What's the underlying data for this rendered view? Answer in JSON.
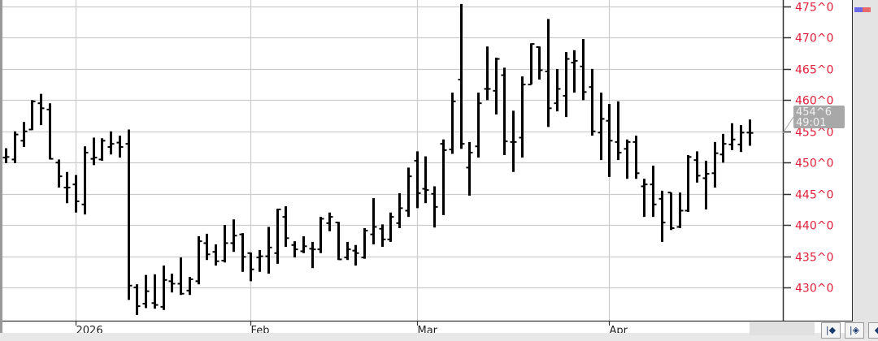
{
  "chart_data": {
    "type": "ohlc",
    "title": "",
    "xlabel": "",
    "ylabel": "",
    "ylim": [
      427,
      476
    ],
    "grid": true,
    "y_ticks": [
      {
        "value": 475,
        "label": "475^0"
      },
      {
        "value": 470,
        "label": "470^0"
      },
      {
        "value": 465,
        "label": "465^0"
      },
      {
        "value": 460,
        "label": "460^0"
      },
      {
        "value": 455,
        "label": "455^0"
      },
      {
        "value": 450,
        "label": "450^0"
      },
      {
        "value": 445,
        "label": "445^0"
      },
      {
        "value": 440,
        "label": "440^0"
      },
      {
        "value": 435,
        "label": "435^0"
      },
      {
        "value": 430,
        "label": "430^0"
      }
    ],
    "x_ticks": [
      {
        "bar": 8,
        "label": "2026"
      },
      {
        "bar": 28,
        "label": "Feb"
      },
      {
        "bar": 47,
        "label": "Mar"
      },
      {
        "bar": 69,
        "label": "Apr"
      }
    ],
    "last_price": {
      "value": 454.75,
      "label": "454^6",
      "sublabel": "49:01"
    },
    "ohlc": [
      [
        450.8,
        452.3,
        449.9,
        450.9
      ],
      [
        450.5,
        455.0,
        449.9,
        454.5
      ],
      [
        453.5,
        456.5,
        452.5,
        455.0
      ],
      [
        455.3,
        460.0,
        455.2,
        459.8
      ],
      [
        459.5,
        461.0,
        456.0,
        458.7
      ],
      [
        458.5,
        459.5,
        450.5,
        450.6
      ],
      [
        450.0,
        450.5,
        446.0,
        447.8
      ],
      [
        446.0,
        448.5,
        443.5,
        446.0
      ],
      [
        446.5,
        448.0,
        442.0,
        443.8
      ],
      [
        443.3,
        452.6,
        441.7,
        451.6
      ],
      [
        450.6,
        454.0,
        449.6,
        450.8
      ],
      [
        450.5,
        453.9,
        450.3,
        453.5
      ],
      [
        452.5,
        455.0,
        451.3,
        453.0
      ],
      [
        453.2,
        454.3,
        450.8,
        452.5
      ],
      [
        453.0,
        455.3,
        428.0,
        430.3
      ],
      [
        430.0,
        430.5,
        425.6,
        427.0
      ],
      [
        427.4,
        432.0,
        426.7,
        429.4
      ],
      [
        427.5,
        432.1,
        426.6,
        427.2
      ],
      [
        426.9,
        433.5,
        426.4,
        431.2
      ],
      [
        431.0,
        432.2,
        429.2,
        430.6
      ],
      [
        430.6,
        434.8,
        428.8,
        429.0
      ],
      [
        429.5,
        431.7,
        428.8,
        431.3
      ],
      [
        431.0,
        438.2,
        430.5,
        437.4
      ],
      [
        437.1,
        438.6,
        434.4,
        435.3
      ],
      [
        435.7,
        436.9,
        433.5,
        434.2
      ],
      [
        434.3,
        440.0,
        434.0,
        437.1
      ],
      [
        437.1,
        440.9,
        435.7,
        438.3
      ],
      [
        438.5,
        438.7,
        432.5,
        434.9
      ],
      [
        435.5,
        435.6,
        431.0,
        432.9
      ],
      [
        434.8,
        436.0,
        432.5,
        435.0
      ],
      [
        435.0,
        439.7,
        432.2,
        436.4
      ],
      [
        435.5,
        442.6,
        433.8,
        442.5
      ],
      [
        441.3,
        443.0,
        436.5,
        437.9
      ],
      [
        436.8,
        437.4,
        434.8,
        436.1
      ],
      [
        435.8,
        438.2,
        435.5,
        436.6
      ],
      [
        436.2,
        437.3,
        433.1,
        436.1
      ],
      [
        436.1,
        441.3,
        435.5,
        441.0
      ],
      [
        440.3,
        442.0,
        439.0,
        441.3
      ],
      [
        440.4,
        440.5,
        434.4,
        434.5
      ],
      [
        434.8,
        437.3,
        434.4,
        436.1
      ],
      [
        435.9,
        436.8,
        433.5,
        435.5
      ],
      [
        434.8,
        439.5,
        434.6,
        439.1
      ],
      [
        438.5,
        444.3,
        436.9,
        439.7
      ],
      [
        439.4,
        440.1,
        436.5,
        437.7
      ],
      [
        437.7,
        442.0,
        437.3,
        441.3
      ],
      [
        440.3,
        445.1,
        439.5,
        442.7
      ],
      [
        442.3,
        449.2,
        441.3,
        447.8
      ],
      [
        450.3,
        451.8,
        442.7,
        445.1
      ],
      [
        445.8,
        451.0,
        443.5,
        445.6
      ],
      [
        445.0,
        446.2,
        439.6,
        442.9
      ],
      [
        453.0,
        453.7,
        441.6,
        452.0
      ],
      [
        452.1,
        461.2,
        451.4,
        459.8
      ],
      [
        463.3,
        475.4,
        452.2,
        453.0
      ],
      [
        449.2,
        453.3,
        444.7,
        451.6
      ],
      [
        452.6,
        461.2,
        450.8,
        459.5
      ],
      [
        461.8,
        468.6,
        460.0,
        461.8
      ],
      [
        461.5,
        466.8,
        457.7,
        466.6
      ],
      [
        464.0,
        465.2,
        451.2,
        453.4
      ],
      [
        453.3,
        458.3,
        448.5,
        453.3
      ],
      [
        454.0,
        463.8,
        450.8,
        462.5
      ],
      [
        462.5,
        469.1,
        462.5,
        469.0
      ],
      [
        468.5,
        468.6,
        463.3,
        464.8
      ],
      [
        464.6,
        473.0,
        455.7,
        458.7
      ],
      [
        459.5,
        465.0,
        458.2,
        461.8
      ],
      [
        460.7,
        467.7,
        457.3,
        466.6
      ],
      [
        466.0,
        468.0,
        461.2,
        466.3
      ],
      [
        465.4,
        469.8,
        460.0,
        461.3
      ],
      [
        462.1,
        465.0,
        454.3,
        455.0
      ],
      [
        454.8,
        461.2,
        450.4,
        457.0
      ],
      [
        456.7,
        459.4,
        447.7,
        453.5
      ],
      [
        453.3,
        459.8,
        450.4,
        451.6
      ],
      [
        452.2,
        453.7,
        447.4,
        453.3
      ],
      [
        453.3,
        454.3,
        447.4,
        448.3
      ],
      [
        446.2,
        447.4,
        441.3,
        446.5
      ],
      [
        446.5,
        449.5,
        441.3,
        443.3
      ],
      [
        444.2,
        445.5,
        437.3,
        440.4
      ],
      [
        445.2,
        445.2,
        439.2,
        439.5
      ],
      [
        439.7,
        445.2,
        439.5,
        442.3
      ],
      [
        442.3,
        451.2,
        442.1,
        450.9
      ],
      [
        450.4,
        451.8,
        446.8,
        447.9
      ],
      [
        447.5,
        450.3,
        442.5,
        448.2
      ],
      [
        448.3,
        453.3,
        446.0,
        451.5
      ],
      [
        451.3,
        454.6,
        450.0,
        453.0
      ],
      [
        452.9,
        456.3,
        452.0,
        453.7
      ],
      [
        452.9,
        456.0,
        451.7,
        454.8
      ],
      [
        454.8,
        456.9,
        452.7,
        454.75
      ]
    ],
    "colors": {
      "bars": "#000000",
      "tick_labels": "#e0203a",
      "grid": "#cccccc",
      "last_price_box": "#a8a8a8"
    }
  },
  "nav_buttons": [
    {
      "icon": "jump-to-start-icon",
      "label": "|◆"
    },
    {
      "icon": "jump-to-start-alt-icon",
      "label": "|◈"
    },
    {
      "icon": "scroll-left-icon",
      "label": "◆"
    }
  ]
}
